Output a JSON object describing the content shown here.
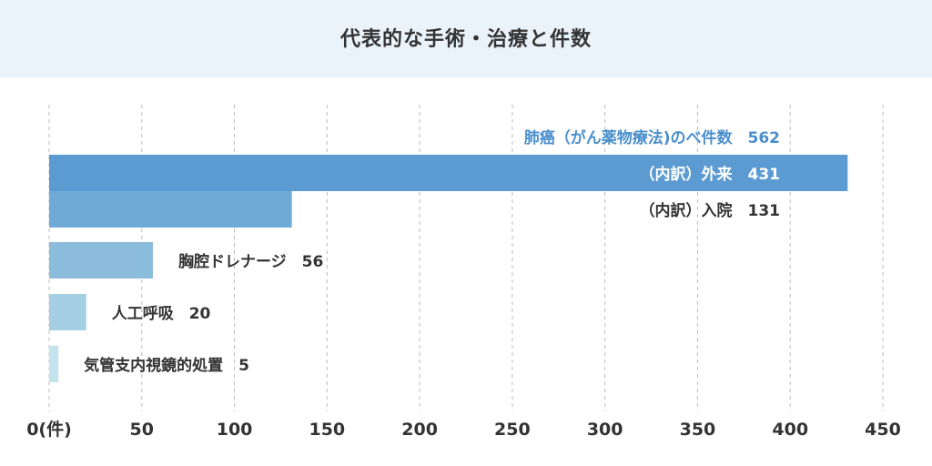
{
  "chart_data": {
    "type": "bar",
    "orientation": "horizontal",
    "title": "代表的な手術・治療と件数",
    "total_label": {
      "text": "肺癌（がん薬物療法)のべ件数",
      "value": 562,
      "color": "#4a8fcb"
    },
    "categories": [
      "（内訳）外来",
      "（内訳）入院",
      "胸腔ドレナージ",
      "人工呼吸",
      "気管支内視鏡的処置"
    ],
    "values": [
      431,
      131,
      56,
      20,
      5
    ],
    "colors": [
      "#5b9bd1",
      "#6fabd6",
      "#8bbcdc",
      "#a5cfe3",
      "#c4e3ec"
    ],
    "xlim": [
      0,
      450
    ],
    "xticks": [
      0,
      50,
      100,
      150,
      200,
      250,
      300,
      350,
      400,
      450
    ],
    "xtick_labels": [
      "0(件)",
      "50",
      "100",
      "150",
      "200",
      "250",
      "300",
      "350",
      "400",
      "450"
    ],
    "grid": "vertical dashed"
  }
}
